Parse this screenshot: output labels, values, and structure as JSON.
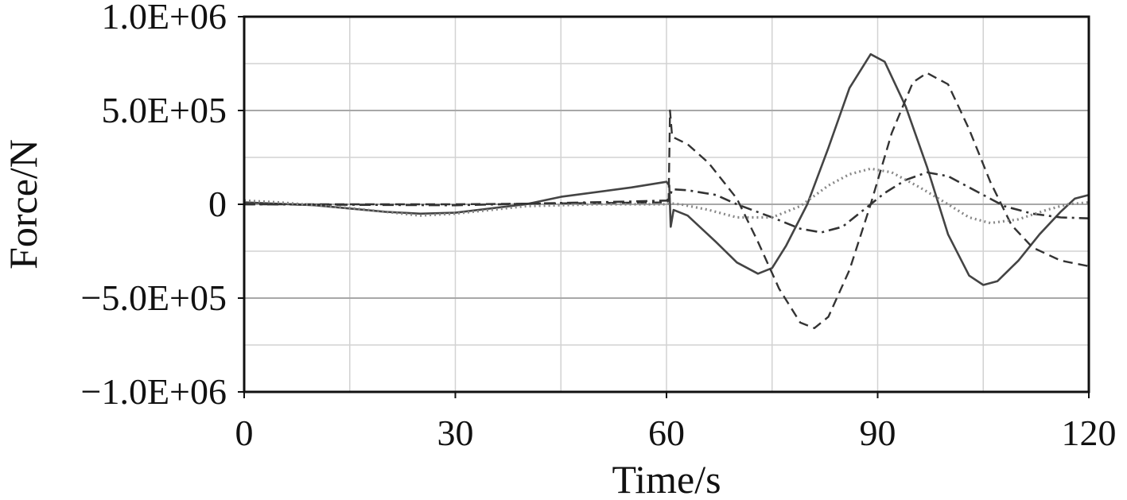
{
  "chart_data": {
    "type": "line",
    "title": "",
    "xlabel": "Time/s",
    "ylabel": "Force/N",
    "xlim": [
      0,
      120
    ],
    "ylim": [
      -1000000,
      1000000
    ],
    "x_ticks": [
      0,
      30,
      60,
      90,
      120
    ],
    "x_tick_labels": [
      "0",
      "30",
      "60",
      "90",
      "120"
    ],
    "y_ticks": [
      -1000000,
      -500000,
      0,
      500000,
      1000000
    ],
    "y_tick_labels": [
      "−1.0E+06",
      "−5.0E+05",
      "0",
      "5.0E+05",
      "1.0E+06"
    ],
    "grid": true,
    "legend": "none",
    "series": [
      {
        "style": "solid",
        "color": "#444444",
        "points": [
          [
            0,
            10000
          ],
          [
            10,
            -5000
          ],
          [
            20,
            -40000
          ],
          [
            25,
            -50000
          ],
          [
            30,
            -45000
          ],
          [
            40,
            0
          ],
          [
            45,
            40000
          ],
          [
            55,
            90000
          ],
          [
            60,
            120000
          ],
          [
            60.4,
            100000
          ],
          [
            60.6,
            -120000
          ],
          [
            61,
            -30000
          ],
          [
            63,
            -60000
          ],
          [
            67,
            -200000
          ],
          [
            70,
            -310000
          ],
          [
            73,
            -370000
          ],
          [
            75,
            -340000
          ],
          [
            77,
            -220000
          ],
          [
            80,
            0
          ],
          [
            83,
            300000
          ],
          [
            86,
            620000
          ],
          [
            89,
            800000
          ],
          [
            91,
            760000
          ],
          [
            94,
            520000
          ],
          [
            97,
            200000
          ],
          [
            100,
            -160000
          ],
          [
            103,
            -380000
          ],
          [
            105,
            -430000
          ],
          [
            107,
            -410000
          ],
          [
            110,
            -300000
          ],
          [
            113,
            -160000
          ],
          [
            116,
            -40000
          ],
          [
            118,
            30000
          ],
          [
            120,
            50000
          ]
        ]
      },
      {
        "style": "dashed",
        "color": "#333333",
        "points": [
          [
            0,
            0
          ],
          [
            30,
            0
          ],
          [
            60,
            10000
          ],
          [
            60.3,
            20000
          ],
          [
            60.5,
            500000
          ],
          [
            60.8,
            360000
          ],
          [
            63,
            320000
          ],
          [
            66,
            220000
          ],
          [
            70,
            30000
          ],
          [
            73,
            -200000
          ],
          [
            76,
            -450000
          ],
          [
            79,
            -630000
          ],
          [
            81,
            -660000
          ],
          [
            83,
            -600000
          ],
          [
            86,
            -350000
          ],
          [
            89,
            0
          ],
          [
            92,
            380000
          ],
          [
            95,
            650000
          ],
          [
            97,
            700000
          ],
          [
            100,
            640000
          ],
          [
            103,
            400000
          ],
          [
            106,
            120000
          ],
          [
            109,
            -110000
          ],
          [
            112,
            -230000
          ],
          [
            116,
            -300000
          ],
          [
            120,
            -330000
          ]
        ]
      },
      {
        "style": "dashdot",
        "color": "#333333",
        "points": [
          [
            0,
            0
          ],
          [
            30,
            -5000
          ],
          [
            55,
            15000
          ],
          [
            60,
            20000
          ],
          [
            60.4,
            30000
          ],
          [
            60.8,
            80000
          ],
          [
            63,
            75000
          ],
          [
            67,
            50000
          ],
          [
            70,
            0
          ],
          [
            75,
            -70000
          ],
          [
            79,
            -130000
          ],
          [
            82,
            -150000
          ],
          [
            85,
            -120000
          ],
          [
            88,
            -30000
          ],
          [
            91,
            60000
          ],
          [
            94,
            130000
          ],
          [
            97,
            170000
          ],
          [
            100,
            150000
          ],
          [
            104,
            70000
          ],
          [
            108,
            -10000
          ],
          [
            112,
            -50000
          ],
          [
            116,
            -70000
          ],
          [
            120,
            -75000
          ]
        ]
      },
      {
        "style": "dotted",
        "color": "#888888",
        "points": [
          [
            0,
            20000
          ],
          [
            5,
            10000
          ],
          [
            15,
            -20000
          ],
          [
            25,
            -60000
          ],
          [
            30,
            -50000
          ],
          [
            40,
            -10000
          ],
          [
            50,
            0
          ],
          [
            60,
            0
          ],
          [
            60.5,
            5000
          ],
          [
            62,
            0
          ],
          [
            66,
            -30000
          ],
          [
            70,
            -70000
          ],
          [
            75,
            -70000
          ],
          [
            79,
            -10000
          ],
          [
            83,
            100000
          ],
          [
            86,
            160000
          ],
          [
            89,
            190000
          ],
          [
            92,
            170000
          ],
          [
            96,
            90000
          ],
          [
            100,
            0
          ],
          [
            103,
            -70000
          ],
          [
            106,
            -100000
          ],
          [
            110,
            -80000
          ],
          [
            114,
            -30000
          ],
          [
            117,
            0
          ],
          [
            120,
            10000
          ]
        ]
      }
    ]
  }
}
